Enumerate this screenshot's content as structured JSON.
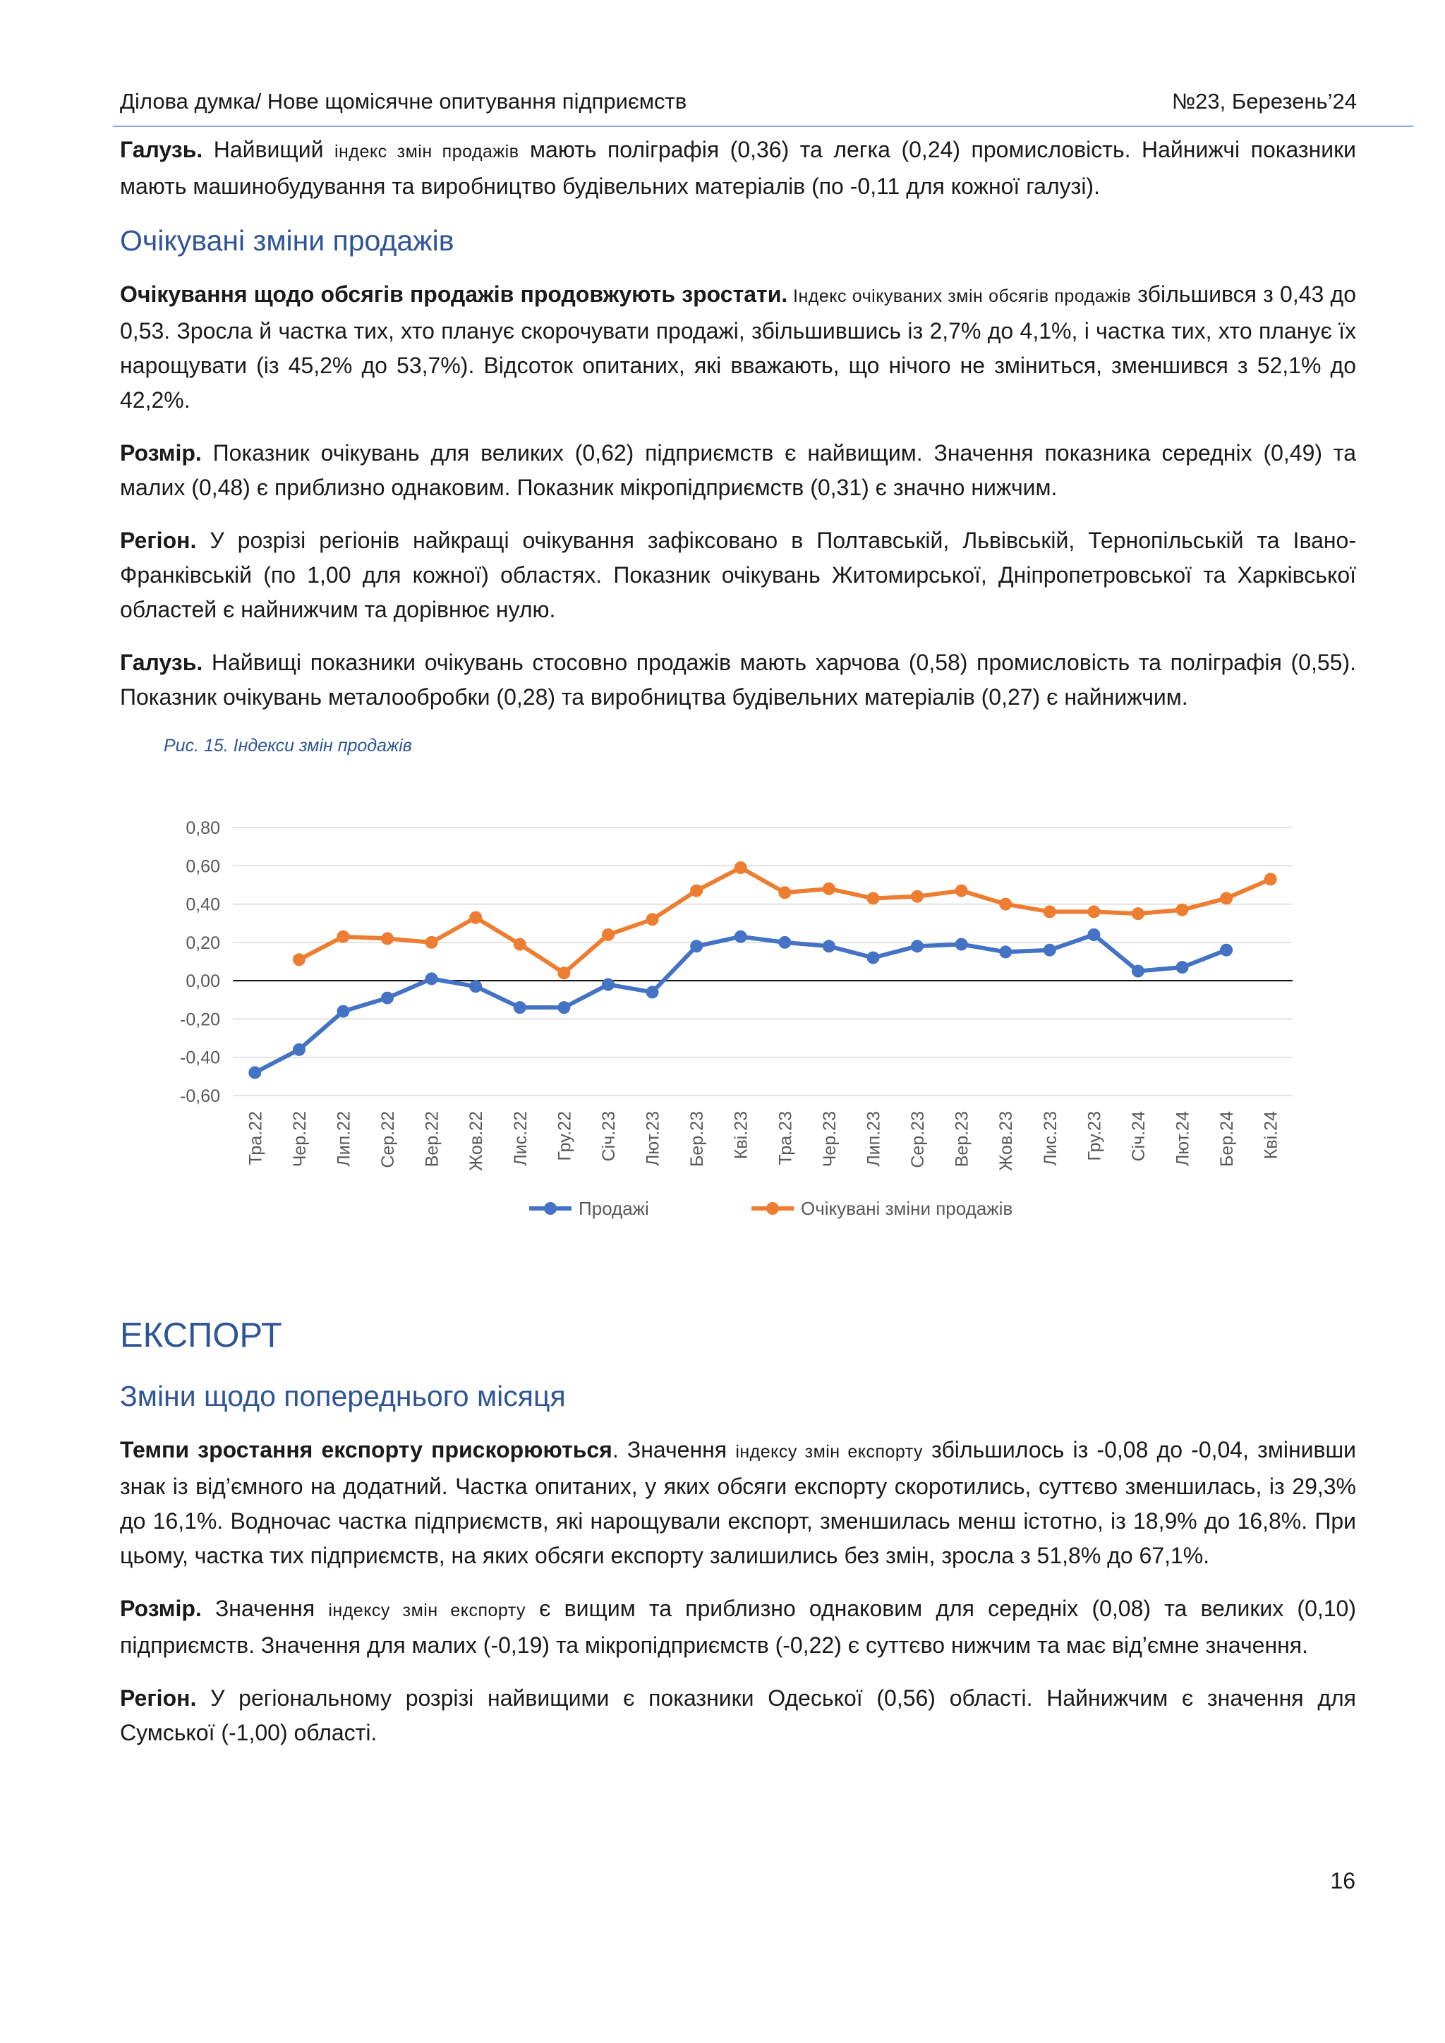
{
  "header": {
    "left": "Ділова думка/ Нове щомісячне опитування підприємств",
    "right": "№23, Березень’24"
  },
  "p1": {
    "lead": "Галузь.",
    "a": " Найвищий ",
    "sc": "індекс змін продажів",
    "b": " мають поліграфія (0,36) та легка (0,24) промисловість. Найнижчі показники мають машинобудування та виробництво будівельних матеріалів (по -0,11 для кожної галузі)."
  },
  "h_expected": "Очікувані зміни продажів",
  "p2": {
    "lead": "Очікування щодо обсягів продажів продовжують зростати.",
    "sc": " Індекс очікуваних змін обсягів продажів",
    "b": " збільшився з 0,43 до 0,53. Зросла й частка тих, хто планує скорочувати продажі, збільшившись із 2,7% до 4,1%, і частка тих, хто планує їх нарощувати (із 45,2% до 53,7%). Відсоток опитаних, які вважають, що нічого не зміниться, зменшився з 52,1% до 42,2%."
  },
  "p3": {
    "lead": "Розмір.",
    "b": " Показник очікувань для великих (0,62) підприємств є найвищим. Значення показника середніх (0,49) та малих (0,48) є приблизно однаковим. Показник мікропідприємств (0,31) є значно нижчим."
  },
  "p4": {
    "lead": "Регіон.",
    "b": " У розрізі регіонів найкращі очікування зафіксовано в Полтавській, Львівській, Тернопільській та Івано-Франківській (по 1,00 для кожної) областях. Показник очікувань Житомирської, Дніпропетровської та Харківської областей є найнижчим та дорівнює нулю."
  },
  "p5": {
    "lead": "Галузь.",
    "b": " Найвищі показники очікувань стосовно продажів мають харчова (0,58) промисловість та поліграфія (0,55). Показник очікувань металообробки (0,28) та виробництва будівельних матеріалів (0,27) є найнижчим."
  },
  "caption": "Рис.  15. Індекси змін продажів",
  "chart_data": {
    "type": "line",
    "title": "",
    "categories": [
      "Тра.22",
      "Чер.22",
      "Лип.22",
      "Сер.22",
      "Вер.22",
      "Жов.22",
      "Лис.22",
      "Гру.22",
      "Січ.23",
      "Лют.23",
      "Бер.23",
      "Кві.23",
      "Тра.23",
      "Чер.23",
      "Лип.23",
      "Сер.23",
      "Вер.23",
      "Жов.23",
      "Лис.23",
      "Гру.23",
      "Січ.24",
      "Лют.24",
      "Бер.24",
      "Кві.24"
    ],
    "series": [
      {
        "name": "Продажі",
        "color": "#4472c4",
        "values": [
          -0.48,
          -0.36,
          -0.16,
          -0.09,
          0.01,
          -0.03,
          -0.14,
          -0.14,
          -0.02,
          -0.06,
          0.18,
          0.23,
          0.2,
          0.18,
          0.12,
          0.18,
          0.19,
          0.15,
          0.16,
          0.24,
          0.05,
          0.07,
          0.16,
          null
        ]
      },
      {
        "name": "Очікувані зміни продажів",
        "color": "#ed7d31",
        "values": [
          null,
          0.11,
          0.23,
          0.22,
          0.2,
          0.33,
          0.19,
          0.04,
          0.24,
          0.32,
          0.47,
          0.59,
          0.46,
          0.48,
          0.43,
          0.44,
          0.47,
          0.4,
          0.36,
          0.36,
          0.35,
          0.37,
          0.43,
          0.53
        ]
      }
    ],
    "ylim": [
      -0.6,
      0.8
    ],
    "yticks": [
      "0,80",
      "0,60",
      "0,40",
      "0,20",
      "0,00",
      "-0,20",
      "-0,40",
      "-0,60"
    ],
    "grid": true,
    "legend": "bottom"
  },
  "h_export": "ЕКСПОРТ",
  "h_prev": "Зміни щодо попереднього місяця",
  "p6": {
    "lead": "Темпи зростання експорту прискорюються",
    "a": ". Значення ",
    "sc": "індексу змін експорту",
    "b": " збільшилось із -0,08 до -0,04, змінивши знак із від’ємного на додатний. Частка опитаних, у яких обсяги експорту скоротились, суттєво зменшилась, із 29,3% до 16,1%. Водночас частка підприємств, які нарощували експорт, зменшилась менш істотно, із 18,9% до 16,8%. При цьому, частка тих підприємств, на яких обсяги експорту залишились без змін, зросла з 51,8% до 67,1%."
  },
  "p7": {
    "lead": "Розмір.",
    "a": " Значення ",
    "sc": "індексу змін експорту",
    "b": " є вищим та приблизно однаковим для середніх (0,08) та великих (0,10) підприємств. Значення для малих (-0,19) та мікропідприємств (-0,22) є суттєво нижчим та має від’ємне значення."
  },
  "p8": {
    "lead": "Регіон.",
    "b": " У регіональному розрізі найвищими є показники Одеської (0,56) області. Найнижчим є значення для Сумської (-1,00) області."
  },
  "page_number": "16"
}
